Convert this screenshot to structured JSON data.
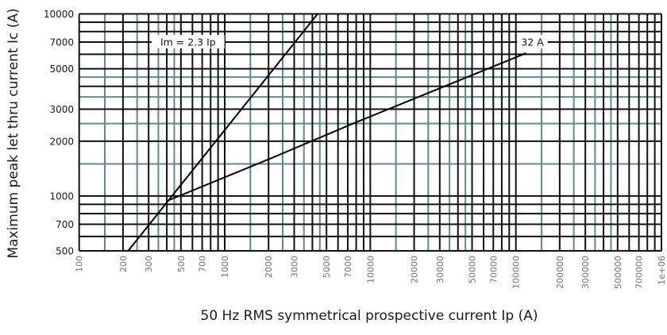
{
  "chart_data": {
    "type": "line",
    "xscale": "log",
    "yscale": "log",
    "xlim": [
      100,
      1000000
    ],
    "ylim": [
      500,
      10000
    ],
    "xlabel": "50 Hz RMS symmetrical prospective current Ip (A)",
    "ylabel": "Maximum peak let thru current Ic (A)",
    "x_ticks": [
      "100",
      "200",
      "300",
      "500",
      "700",
      "1000",
      "2000",
      "3000",
      "5000",
      "7000",
      "10000",
      "20000",
      "30000",
      "50000",
      "70000",
      "100000",
      "200000",
      "300000",
      "500000",
      "700000",
      "1e+06"
    ],
    "y_ticks": [
      "500",
      "700",
      "1000",
      "2000",
      "3000",
      "5000",
      "7000",
      "10000"
    ],
    "grid": true,
    "grid_major_multiples": [
      1,
      2,
      3,
      4,
      5,
      6,
      7,
      8,
      9
    ],
    "grid_secondary_multiples": [
      1.5,
      2.5,
      3.5,
      4.5
    ],
    "colors": {
      "major": "#111111",
      "secondary": "#5f8a90",
      "series": "#000000"
    },
    "series": [
      {
        "name": "Im = 2.3 Ip",
        "x": [
          217,
          4348
        ],
        "y": [
          500,
          10000
        ]
      },
      {
        "name": "32 A",
        "x": [
          415,
          2000,
          7800,
          117000
        ],
        "y": [
          950,
          1590,
          2520,
          6080
        ]
      }
    ],
    "annotations": [
      {
        "text": "Im = 2.3 Ip",
        "at_x": 560,
        "at_y": 7000
      },
      {
        "text": "32 A",
        "at_x": 130000,
        "at_y": 7000
      }
    ]
  }
}
